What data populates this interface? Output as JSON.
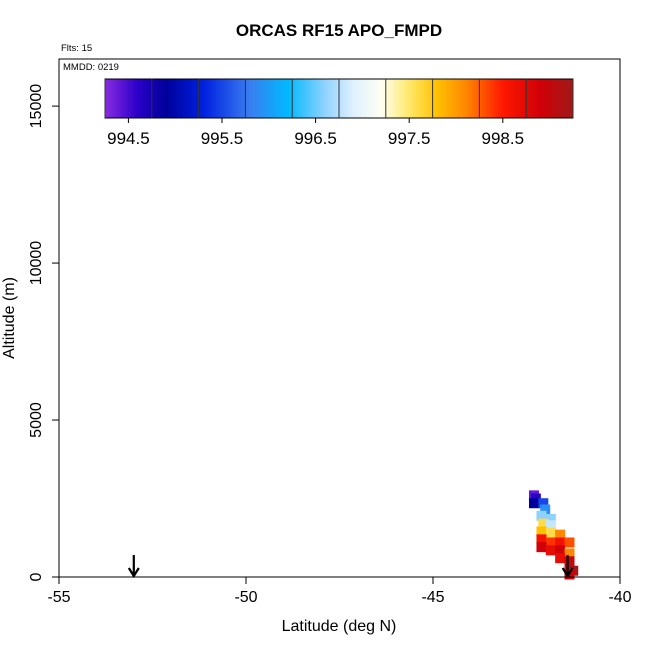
{
  "chart_data": {
    "type": "scatter",
    "title": "ORCAS RF15 APO_FMPD",
    "subtitle_flights": "Flts: 15",
    "subtitle_date": "MMDD: 0219",
    "xlabel": "Latitude (deg N)",
    "ylabel": "Altitude (m)",
    "xlim": [
      -55,
      -40
    ],
    "ylim": [
      0,
      16500
    ],
    "xticks": [
      -55,
      -50,
      -45,
      -40
    ],
    "xtick_labels": [
      "-55",
      "-50",
      "-45",
      "-40"
    ],
    "yticks": [
      0,
      5000,
      10000,
      15000
    ],
    "ytick_labels": [
      "0",
      "5000",
      "10000",
      "15000"
    ],
    "colorbar": {
      "range": [
        994.25,
        999.25
      ],
      "ticks": [
        994.5,
        995.5,
        996.5,
        997.5,
        998.5
      ],
      "tick_labels": [
        "994.5",
        "995.5",
        "996.5",
        "997.5",
        "998.5"
      ],
      "stops": [
        {
          "v": 994.25,
          "c": "#8a2be2"
        },
        {
          "v": 994.6,
          "c": "#2a00c8"
        },
        {
          "v": 994.9,
          "c": "#00009a"
        },
        {
          "v": 995.3,
          "c": "#0020e0"
        },
        {
          "v": 995.8,
          "c": "#3a7ef0"
        },
        {
          "v": 996.2,
          "c": "#00b8ff"
        },
        {
          "v": 996.6,
          "c": "#8fd2ff"
        },
        {
          "v": 996.9,
          "c": "#dff0ff"
        },
        {
          "v": 997.2,
          "c": "#fffff2"
        },
        {
          "v": 997.5,
          "c": "#ffe86a"
        },
        {
          "v": 997.8,
          "c": "#ffc000"
        },
        {
          "v": 998.1,
          "c": "#ff8800"
        },
        {
          "v": 998.5,
          "c": "#ff1800"
        },
        {
          "v": 998.9,
          "c": "#d00008"
        },
        {
          "v": 999.25,
          "c": "#a01a18"
        }
      ]
    },
    "points": [
      {
        "lat": -42.3,
        "alt": 2600,
        "value": 994.4
      },
      {
        "lat": -42.25,
        "alt": 2500,
        "value": 994.6
      },
      {
        "lat": -42.3,
        "alt": 2350,
        "value": 994.9
      },
      {
        "lat": -42.05,
        "alt": 2350,
        "value": 995.5
      },
      {
        "lat": -42.0,
        "alt": 2150,
        "value": 995.9
      },
      {
        "lat": -42.1,
        "alt": 1950,
        "value": 996.6
      },
      {
        "lat": -41.85,
        "alt": 1850,
        "value": 996.6
      },
      {
        "lat": -42.05,
        "alt": 1700,
        "value": 997.6
      },
      {
        "lat": -41.85,
        "alt": 1650,
        "value": 996.8
      },
      {
        "lat": -42.1,
        "alt": 1450,
        "value": 997.8
      },
      {
        "lat": -41.85,
        "alt": 1400,
        "value": 997.6
      },
      {
        "lat": -41.6,
        "alt": 1350,
        "value": 998.1
      },
      {
        "lat": -42.1,
        "alt": 1200,
        "value": 998.6
      },
      {
        "lat": -41.85,
        "alt": 1100,
        "value": 998.4
      },
      {
        "lat": -41.6,
        "alt": 1100,
        "value": 998.6
      },
      {
        "lat": -41.35,
        "alt": 1100,
        "value": 998.3
      },
      {
        "lat": -42.1,
        "alt": 950,
        "value": 998.9
      },
      {
        "lat": -41.85,
        "alt": 850,
        "value": 998.7
      },
      {
        "lat": -41.6,
        "alt": 850,
        "value": 998.9
      },
      {
        "lat": -41.35,
        "alt": 750,
        "value": 998.1
      },
      {
        "lat": -41.6,
        "alt": 600,
        "value": 998.7
      },
      {
        "lat": -41.35,
        "alt": 500,
        "value": 999.0
      },
      {
        "lat": -41.35,
        "alt": 300,
        "value": 999.1
      },
      {
        "lat": -41.25,
        "alt": 200,
        "value": 999.2
      },
      {
        "lat": -41.35,
        "alt": 80,
        "value": 998.9
      }
    ],
    "arrows": [
      {
        "lat": -53.0,
        "alt_top": 700,
        "alt_bottom": 0
      },
      {
        "lat": -41.4,
        "alt_top": 700,
        "alt_bottom": 0
      }
    ]
  }
}
